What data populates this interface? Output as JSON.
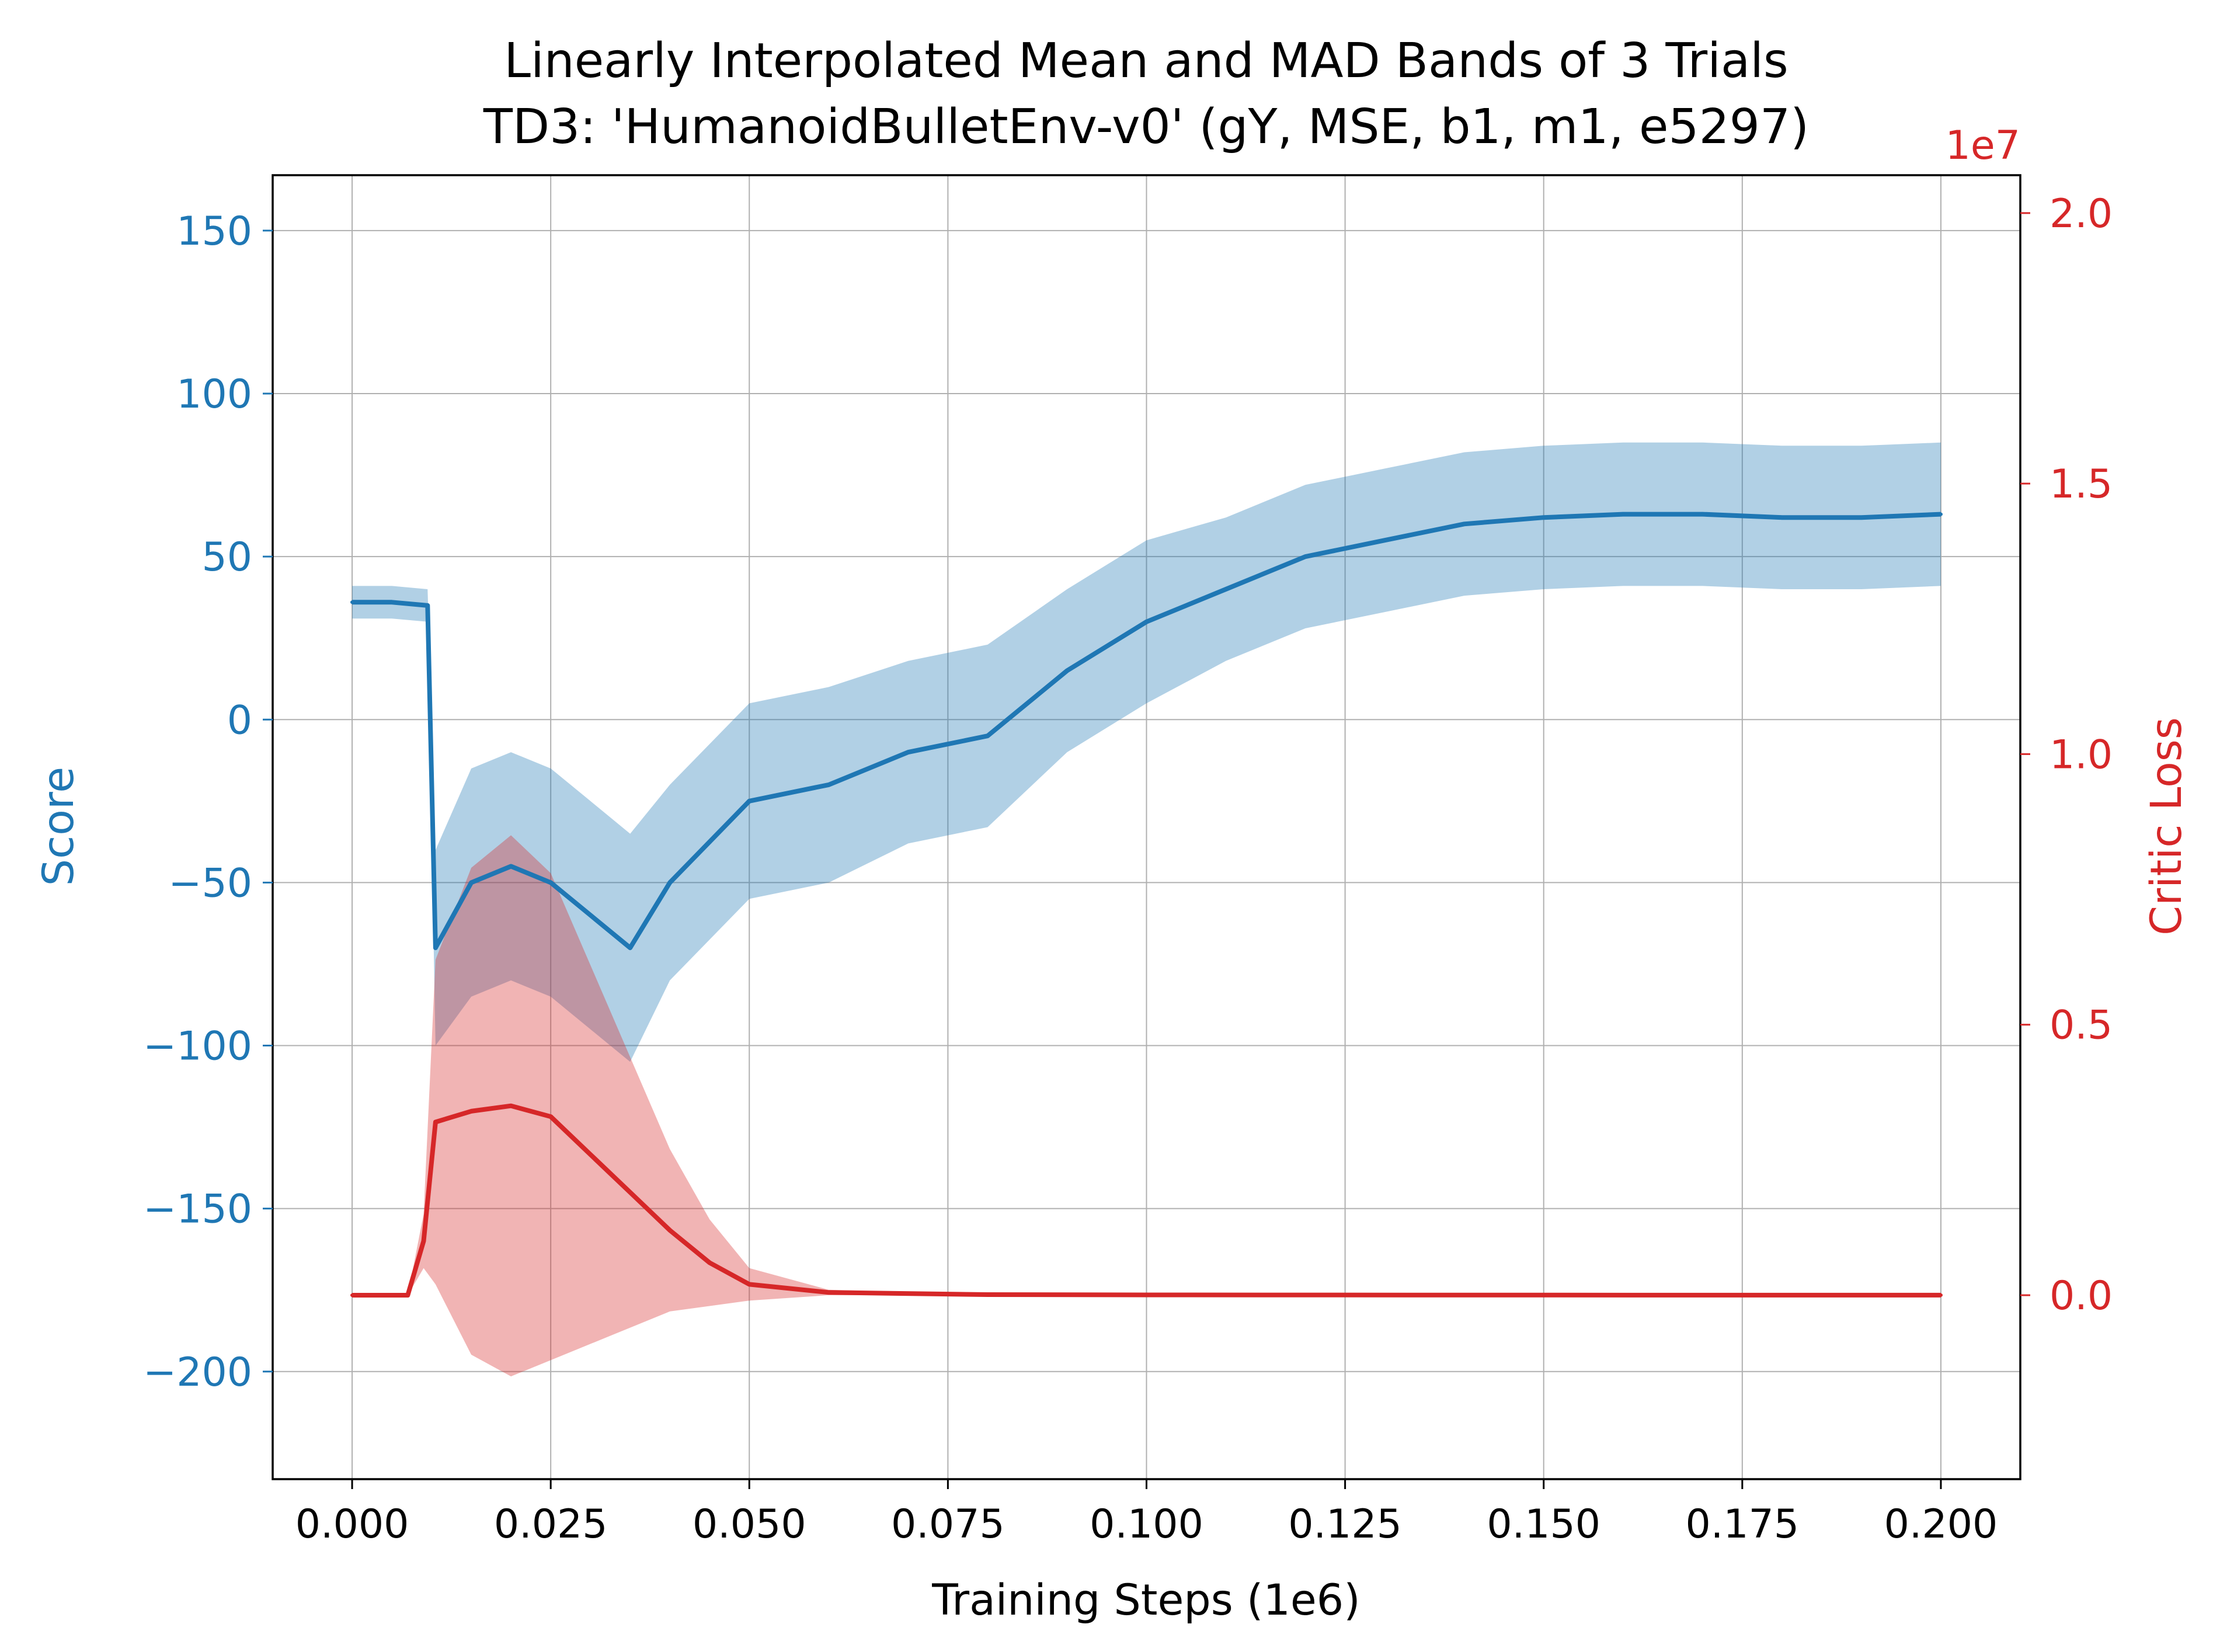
{
  "chart_data": {
    "type": "line",
    "title": "Linearly Interpolated Mean and MAD Bands of 3 Trials",
    "subtitle": "TD3: 'HumanoidBulletEnv-v0' (gY, MSE, b1, m1, e5297)",
    "xlabel": "Training Steps (1e6)",
    "ylabel_left": "Score",
    "ylabel_right": "Critic Loss",
    "right_axis_multiplier": "1e7",
    "xlim": [
      -0.01,
      0.21
    ],
    "ylim_left": [
      -233,
      167
    ],
    "ylim_right": [
      -3400000,
      20700000
    ],
    "x_ticks": [
      "0.000",
      "0.025",
      "0.050",
      "0.075",
      "0.100",
      "0.125",
      "0.150",
      "0.175",
      "0.200"
    ],
    "y_ticks_left": [
      "−200",
      "−150",
      "−100",
      "−50",
      "0",
      "50",
      "100",
      "150"
    ],
    "y_ticks_right": [
      "0.0",
      "0.5",
      "1.0",
      "1.5",
      "2.0"
    ],
    "grid": true,
    "colors": {
      "score": "#1f77b4",
      "critic_loss": "#d62728",
      "axis": "#000000",
      "grid": "#b0b0b0"
    },
    "series": [
      {
        "name": "Score",
        "axis": "left",
        "color": "#1f77b4",
        "x": [
          0.0,
          0.005,
          0.0095,
          0.0105,
          0.015,
          0.02,
          0.025,
          0.03,
          0.035,
          0.04,
          0.05,
          0.06,
          0.07,
          0.08,
          0.09,
          0.1,
          0.11,
          0.12,
          0.13,
          0.14,
          0.15,
          0.16,
          0.17,
          0.18,
          0.19,
          0.2
        ],
        "y": [
          36,
          36,
          35,
          -70,
          -50,
          -45,
          -50,
          -60,
          -70,
          -50,
          -25,
          -20,
          -10,
          -5,
          15,
          30,
          40,
          50,
          55,
          60,
          62,
          63,
          63,
          62,
          62,
          63
        ],
        "band_mad": [
          5,
          5,
          5,
          30,
          35,
          35,
          35,
          35,
          35,
          30,
          30,
          30,
          28,
          28,
          25,
          25,
          22,
          22,
          22,
          22,
          22,
          22,
          22,
          22,
          22,
          22
        ]
      },
      {
        "name": "Critic Loss",
        "axis": "right",
        "color": "#d62728",
        "x": [
          0.0,
          0.007,
          0.009,
          0.0105,
          0.015,
          0.02,
          0.025,
          0.03,
          0.035,
          0.04,
          0.045,
          0.05,
          0.06,
          0.08,
          0.1,
          0.15,
          0.2
        ],
        "y": [
          0,
          0,
          1000000,
          3200000,
          3400000,
          3500000,
          3300000,
          2600000,
          1900000,
          1200000,
          600000,
          200000,
          50000,
          10000,
          5000,
          2000,
          1000
        ],
        "band_mad": [
          0,
          0,
          500000,
          3000000,
          4500000,
          5000000,
          4500000,
          3500000,
          2500000,
          1500000,
          800000,
          300000,
          50000,
          10000,
          5000,
          2000,
          1000
        ]
      }
    ]
  }
}
